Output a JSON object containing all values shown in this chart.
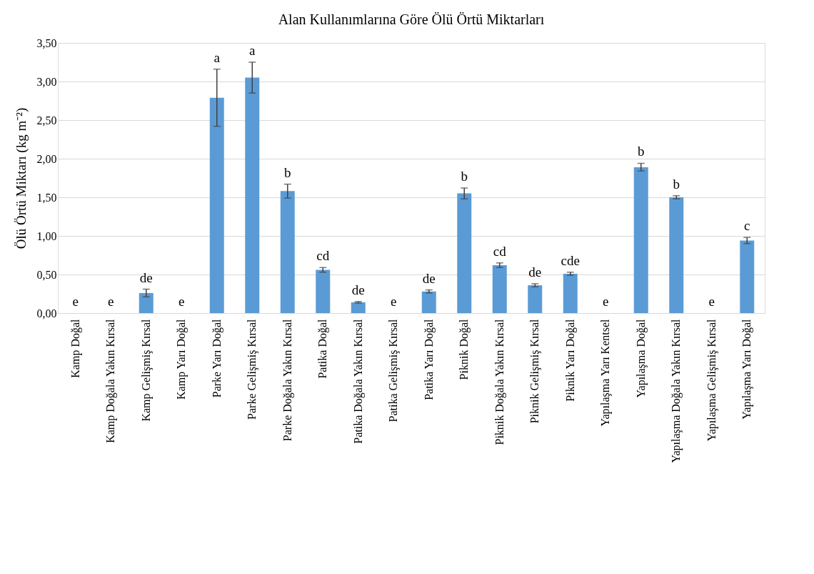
{
  "chart_data": {
    "type": "bar",
    "title": "Alan Kullanımlarına Göre Ölü Örtü Miktarları",
    "ylabel": "Ölü Örtü Miktarı (kg m⁻²)",
    "categories": [
      "Kamp Doğal",
      "Kamp Doğala Yakın Kırsal",
      "Kamp Gelişmiş Kırsal",
      "Kamp Yarı Doğal",
      "Parke Yarı Doğal",
      "Parke Gelişmiş Kırsal",
      "Parke Doğala Yakın Kırsal",
      "Patika Doğal",
      "Patika Doğala Yakın Kırsal",
      "Patika Gelişmiş Kırsal",
      "Patika Yarı Doğal",
      "Piknik Doğal",
      "Piknik Doğala Yakın Kırsal",
      "Piknik Gelişmiş Kırsal",
      "Piknik Yarı Doğal",
      "Yapılaşma Yarı Kentsel",
      "Yapılaşma Doğal",
      "Yapılaşma Doğala Yakın Kırsal",
      "Yapılaşma Gelişmiş Kırsal",
      "Yapılaşma Yarı Doğal"
    ],
    "values": [
      0,
      0,
      0.26,
      0,
      2.79,
      3.05,
      1.58,
      0.56,
      0.14,
      0,
      0.28,
      1.55,
      0.62,
      0.36,
      0.51,
      0,
      1.89,
      1.5,
      0,
      0.94
    ],
    "errors": [
      null,
      null,
      0.05,
      null,
      0.37,
      0.2,
      0.09,
      0.03,
      0.01,
      null,
      0.02,
      0.07,
      0.03,
      0.02,
      0.02,
      null,
      0.05,
      0.02,
      null,
      0.04
    ],
    "color": "#5b9bd5",
    "ylim": [
      0,
      3.5
    ],
    "yticks": [
      {
        "value": 0,
        "label": "0,00"
      },
      {
        "value": 0.5,
        "label": "0,50"
      },
      {
        "value": 1,
        "label": "1,00"
      },
      {
        "value": 1.5,
        "label": "1,50"
      },
      {
        "value": 2,
        "label": "2,00"
      },
      {
        "value": 2.5,
        "label": "2,50"
      },
      {
        "value": 3,
        "label": "3,00"
      },
      {
        "value": 3.5,
        "label": "3,50"
      }
    ],
    "grid": "y",
    "annotations": [
      {
        "text": "e",
        "x": "Kamp Doğal",
        "y": 0
      },
      {
        "text": "e",
        "x": "Kamp Doğala Yakın Kırsal",
        "y": 0
      },
      {
        "text": "de",
        "x": "Kamp Gelişmiş Kırsal",
        "y": 0.31
      },
      {
        "text": "e",
        "x": "Kamp Yarı Doğal",
        "y": 0
      },
      {
        "text": "a",
        "x": "Parke Yarı Doğal",
        "y": 3.16
      },
      {
        "text": "a",
        "x": "Parke Gelişmiş Kırsal",
        "y": 3.25
      },
      {
        "text": "b",
        "x": "Parke Doğala Yakın Kırsal",
        "y": 1.67
      },
      {
        "text": "cd",
        "x": "Patika Doğal",
        "y": 0.59
      },
      {
        "text": "de",
        "x": "Patika Doğala Yakın Kırsal",
        "y": 0.15
      },
      {
        "text": "e",
        "x": "Patika Gelişmiş Kırsal",
        "y": 0
      },
      {
        "text": "de",
        "x": "Patika Yarı Doğal",
        "y": 0.3
      },
      {
        "text": "b",
        "x": "Piknik Doğal",
        "y": 1.62
      },
      {
        "text": "cd",
        "x": "Piknik Doğala Yakın Kırsal",
        "y": 0.65
      },
      {
        "text": "de",
        "x": "Piknik Gelişmiş Kırsal",
        "y": 0.38
      },
      {
        "text": "cde",
        "x": "Piknik Yarı Doğal",
        "y": 0.53
      },
      {
        "text": "e",
        "x": "Yapılaşma Yarı Kentsel",
        "y": 0
      },
      {
        "text": "b",
        "x": "Yapılaşma Doğal",
        "y": 1.94
      },
      {
        "text": "b",
        "x": "Yapılaşma Doğala Yakın Kırsal",
        "y": 1.52
      },
      {
        "text": "e",
        "x": "Yapılaşma Gelişmiş Kırsal",
        "y": 0
      },
      {
        "text": "c",
        "x": "Yapılaşma Yarı Doğal",
        "y": 0.98
      }
    ]
  }
}
